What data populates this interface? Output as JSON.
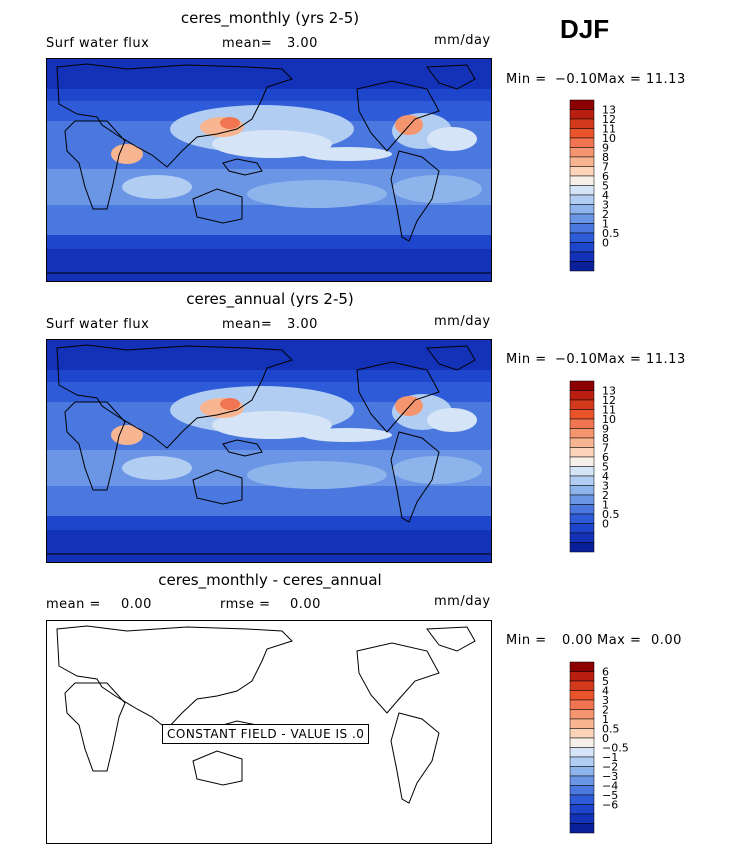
{
  "season": "DJF",
  "unit": "mm/day",
  "panels": [
    {
      "title": "ceres_monthly (yrs 2-5)",
      "field_label": "Surf water flux",
      "stat_label": "mean=",
      "stat_value": "3.00",
      "min_label": "Min =",
      "min_value": "−0.10",
      "max_label": "Max =",
      "max_value": "11.13",
      "colorbar_labels": [
        "13",
        "12",
        "11",
        "10",
        "9",
        "8",
        "7",
        "6",
        "5",
        "4",
        "3",
        "2",
        "1",
        "0.5",
        "0"
      ],
      "colorbar_colors": [
        "#8b0000",
        "#b81f10",
        "#d33a1c",
        "#e9542a",
        "#f07550",
        "#f5956f",
        "#f8b592",
        "#fbd4b9",
        "#f7f0e8",
        "#d5e4f7",
        "#b1cdf2",
        "#8eb4ec",
        "#6b96e6",
        "#4a78df",
        "#2e5bd8",
        "#1e46cc",
        "#1432b8",
        "#0a1f9a"
      ]
    },
    {
      "title": "ceres_annual (yrs 2-5)",
      "field_label": "Surf water flux",
      "stat_label": "mean=",
      "stat_value": "3.00",
      "min_label": "Min =",
      "min_value": "−0.10",
      "max_label": "Max =",
      "max_value": "11.13",
      "colorbar_labels": [
        "13",
        "12",
        "11",
        "10",
        "9",
        "8",
        "7",
        "6",
        "5",
        "4",
        "3",
        "2",
        "1",
        "0.5",
        "0"
      ],
      "colorbar_colors": [
        "#8b0000",
        "#b81f10",
        "#d33a1c",
        "#e9542a",
        "#f07550",
        "#f5956f",
        "#f8b592",
        "#fbd4b9",
        "#f7f0e8",
        "#d5e4f7",
        "#b1cdf2",
        "#8eb4ec",
        "#6b96e6",
        "#4a78df",
        "#2e5bd8",
        "#1e46cc",
        "#1432b8",
        "#0a1f9a"
      ]
    },
    {
      "title": "ceres_monthly - ceres_annual",
      "stat1_label": "mean =",
      "stat1_value": "0.00",
      "stat2_label": "rmse =",
      "stat2_value": "0.00",
      "min_label": "Min =",
      "min_value": "0.00",
      "max_label": "Max =",
      "max_value": "0.00",
      "notice": "CONSTANT FIELD - VALUE IS .0",
      "colorbar_labels": [
        "6",
        "5",
        "4",
        "3",
        "2",
        "1",
        "0.5",
        "0",
        "−0.5",
        "−1",
        "−2",
        "−3",
        "−4",
        "−5",
        "−6"
      ],
      "colorbar_colors": [
        "#8b0000",
        "#b81f10",
        "#d33a1c",
        "#e9542a",
        "#f07550",
        "#f5956f",
        "#f8b592",
        "#fbd4b9",
        "#f7f0e8",
        "#d5e4f7",
        "#b1cdf2",
        "#8eb4ec",
        "#6b96e6",
        "#4a78df",
        "#2e5bd8",
        "#1e46cc",
        "#1432b8",
        "#0a1f9a"
      ]
    }
  ]
}
